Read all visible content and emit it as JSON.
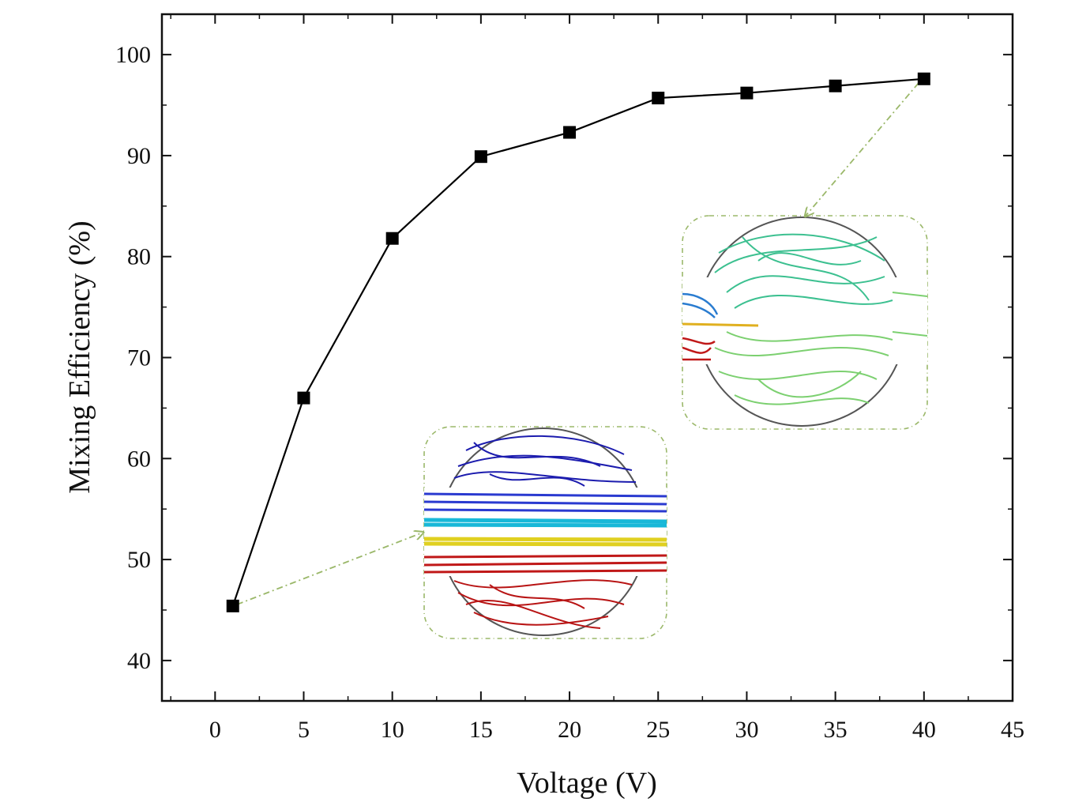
{
  "chart_data": {
    "type": "line",
    "title": "",
    "xlabel": "Voltage (V)",
    "ylabel": "Mixing Efficiency (%)",
    "xlim": [
      -3,
      45
    ],
    "ylim": [
      36,
      104
    ],
    "x_ticks": [
      0,
      5,
      10,
      15,
      20,
      25,
      30,
      35,
      40,
      45
    ],
    "y_ticks": [
      40,
      50,
      60,
      70,
      80,
      90,
      100
    ],
    "grid": false,
    "legend": "none",
    "series": [
      {
        "marker": "square",
        "color": "#000000",
        "x": [
          1,
          5,
          10,
          15,
          20,
          25,
          30,
          35,
          40
        ],
        "y": [
          45.4,
          66.0,
          81.8,
          89.9,
          92.3,
          95.7,
          96.2,
          96.9,
          97.6
        ]
      }
    ],
    "insets": [
      {
        "description": "streamline-plot",
        "points_to": {
          "x": 1,
          "y": 45.4
        },
        "colors": [
          "#1a1aa8",
          "#18b8d8",
          "#e0d020",
          "#c01818"
        ]
      },
      {
        "description": "streamline-plot",
        "points_to": {
          "x": 40,
          "y": 97.6
        },
        "colors": [
          "#3cc090",
          "#7cd070",
          "#2a7cd0",
          "#c01818"
        ]
      }
    ]
  }
}
